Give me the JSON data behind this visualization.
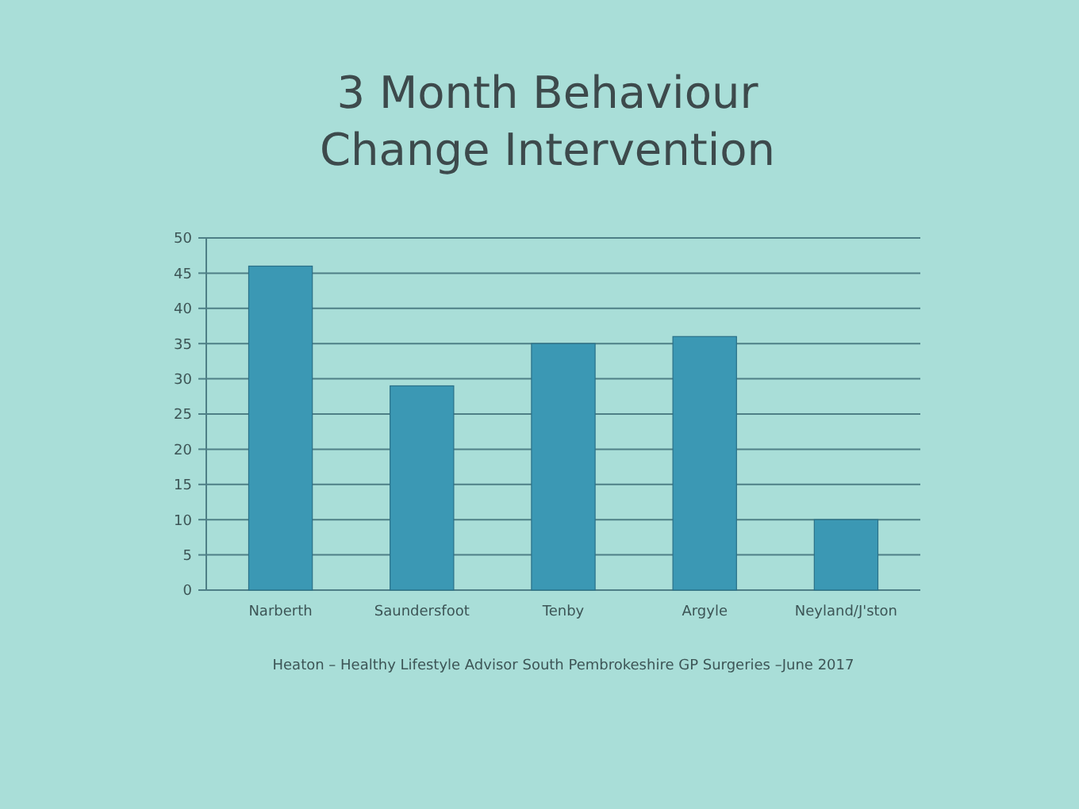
{
  "chart_data": {
    "type": "bar",
    "title": "3 Month Behaviour Change Intervention",
    "categories": [
      "Narberth",
      "Saundersfoot",
      "Tenby",
      "Argyle",
      "Neyland/J'ston"
    ],
    "values": [
      46,
      29,
      35,
      36,
      10
    ],
    "color": "#3b98b4",
    "ylim": [
      0,
      50
    ],
    "yticks": [
      0,
      5,
      10,
      15,
      20,
      25,
      30,
      35,
      40,
      45,
      50
    ],
    "grid": "y",
    "annotations": [
      "Heaton – Healthy Lifestyle Advisor South Pembrokeshire GP Surgeries –June 2017"
    ]
  }
}
